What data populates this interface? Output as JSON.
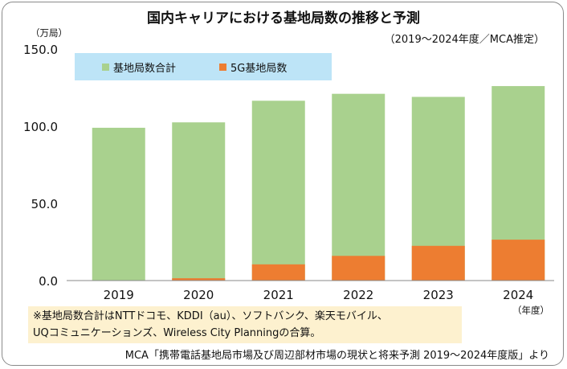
{
  "title": "国内キャリアにおける基地局数の推移と予測",
  "subtitle": "（2019～2024年度／MCA推定）",
  "yunit": "（万局）",
  "xunit": "（年度）",
  "note_lines": [
    "※基地局数合計はNTTドコモ、KDDI（au）、ソフトバンク、楽天モバイル、",
    "UQコミュニケーションズ、Wireless City Planningの合算。"
  ],
  "source": "MCA「携帯電話基地局市場及び周辺部材市場の現状と将来予測 2019～2024年度版」より",
  "colors": {
    "total": "#a9d18e",
    "g5": "#ed7d31",
    "legend_bg": "#bde4f7",
    "axis": "#888888"
  },
  "chart_data": {
    "type": "bar",
    "stacked": "overlay",
    "categories": [
      "2019",
      "2020",
      "2021",
      "2022",
      "2023",
      "2024"
    ],
    "series": [
      {
        "name": "基地局数合計",
        "values": [
          99.0,
          102.5,
          116.5,
          121.0,
          119.0,
          126.0
        ]
      },
      {
        "name": "5G基地局数",
        "values": [
          0.0,
          1.5,
          10.5,
          16.0,
          22.5,
          26.5
        ]
      }
    ],
    "yticks": [
      "0.0",
      "50.0",
      "100.0",
      "150.0"
    ],
    "ylim": [
      0,
      150
    ],
    "grid": false,
    "legend": "top-left"
  }
}
